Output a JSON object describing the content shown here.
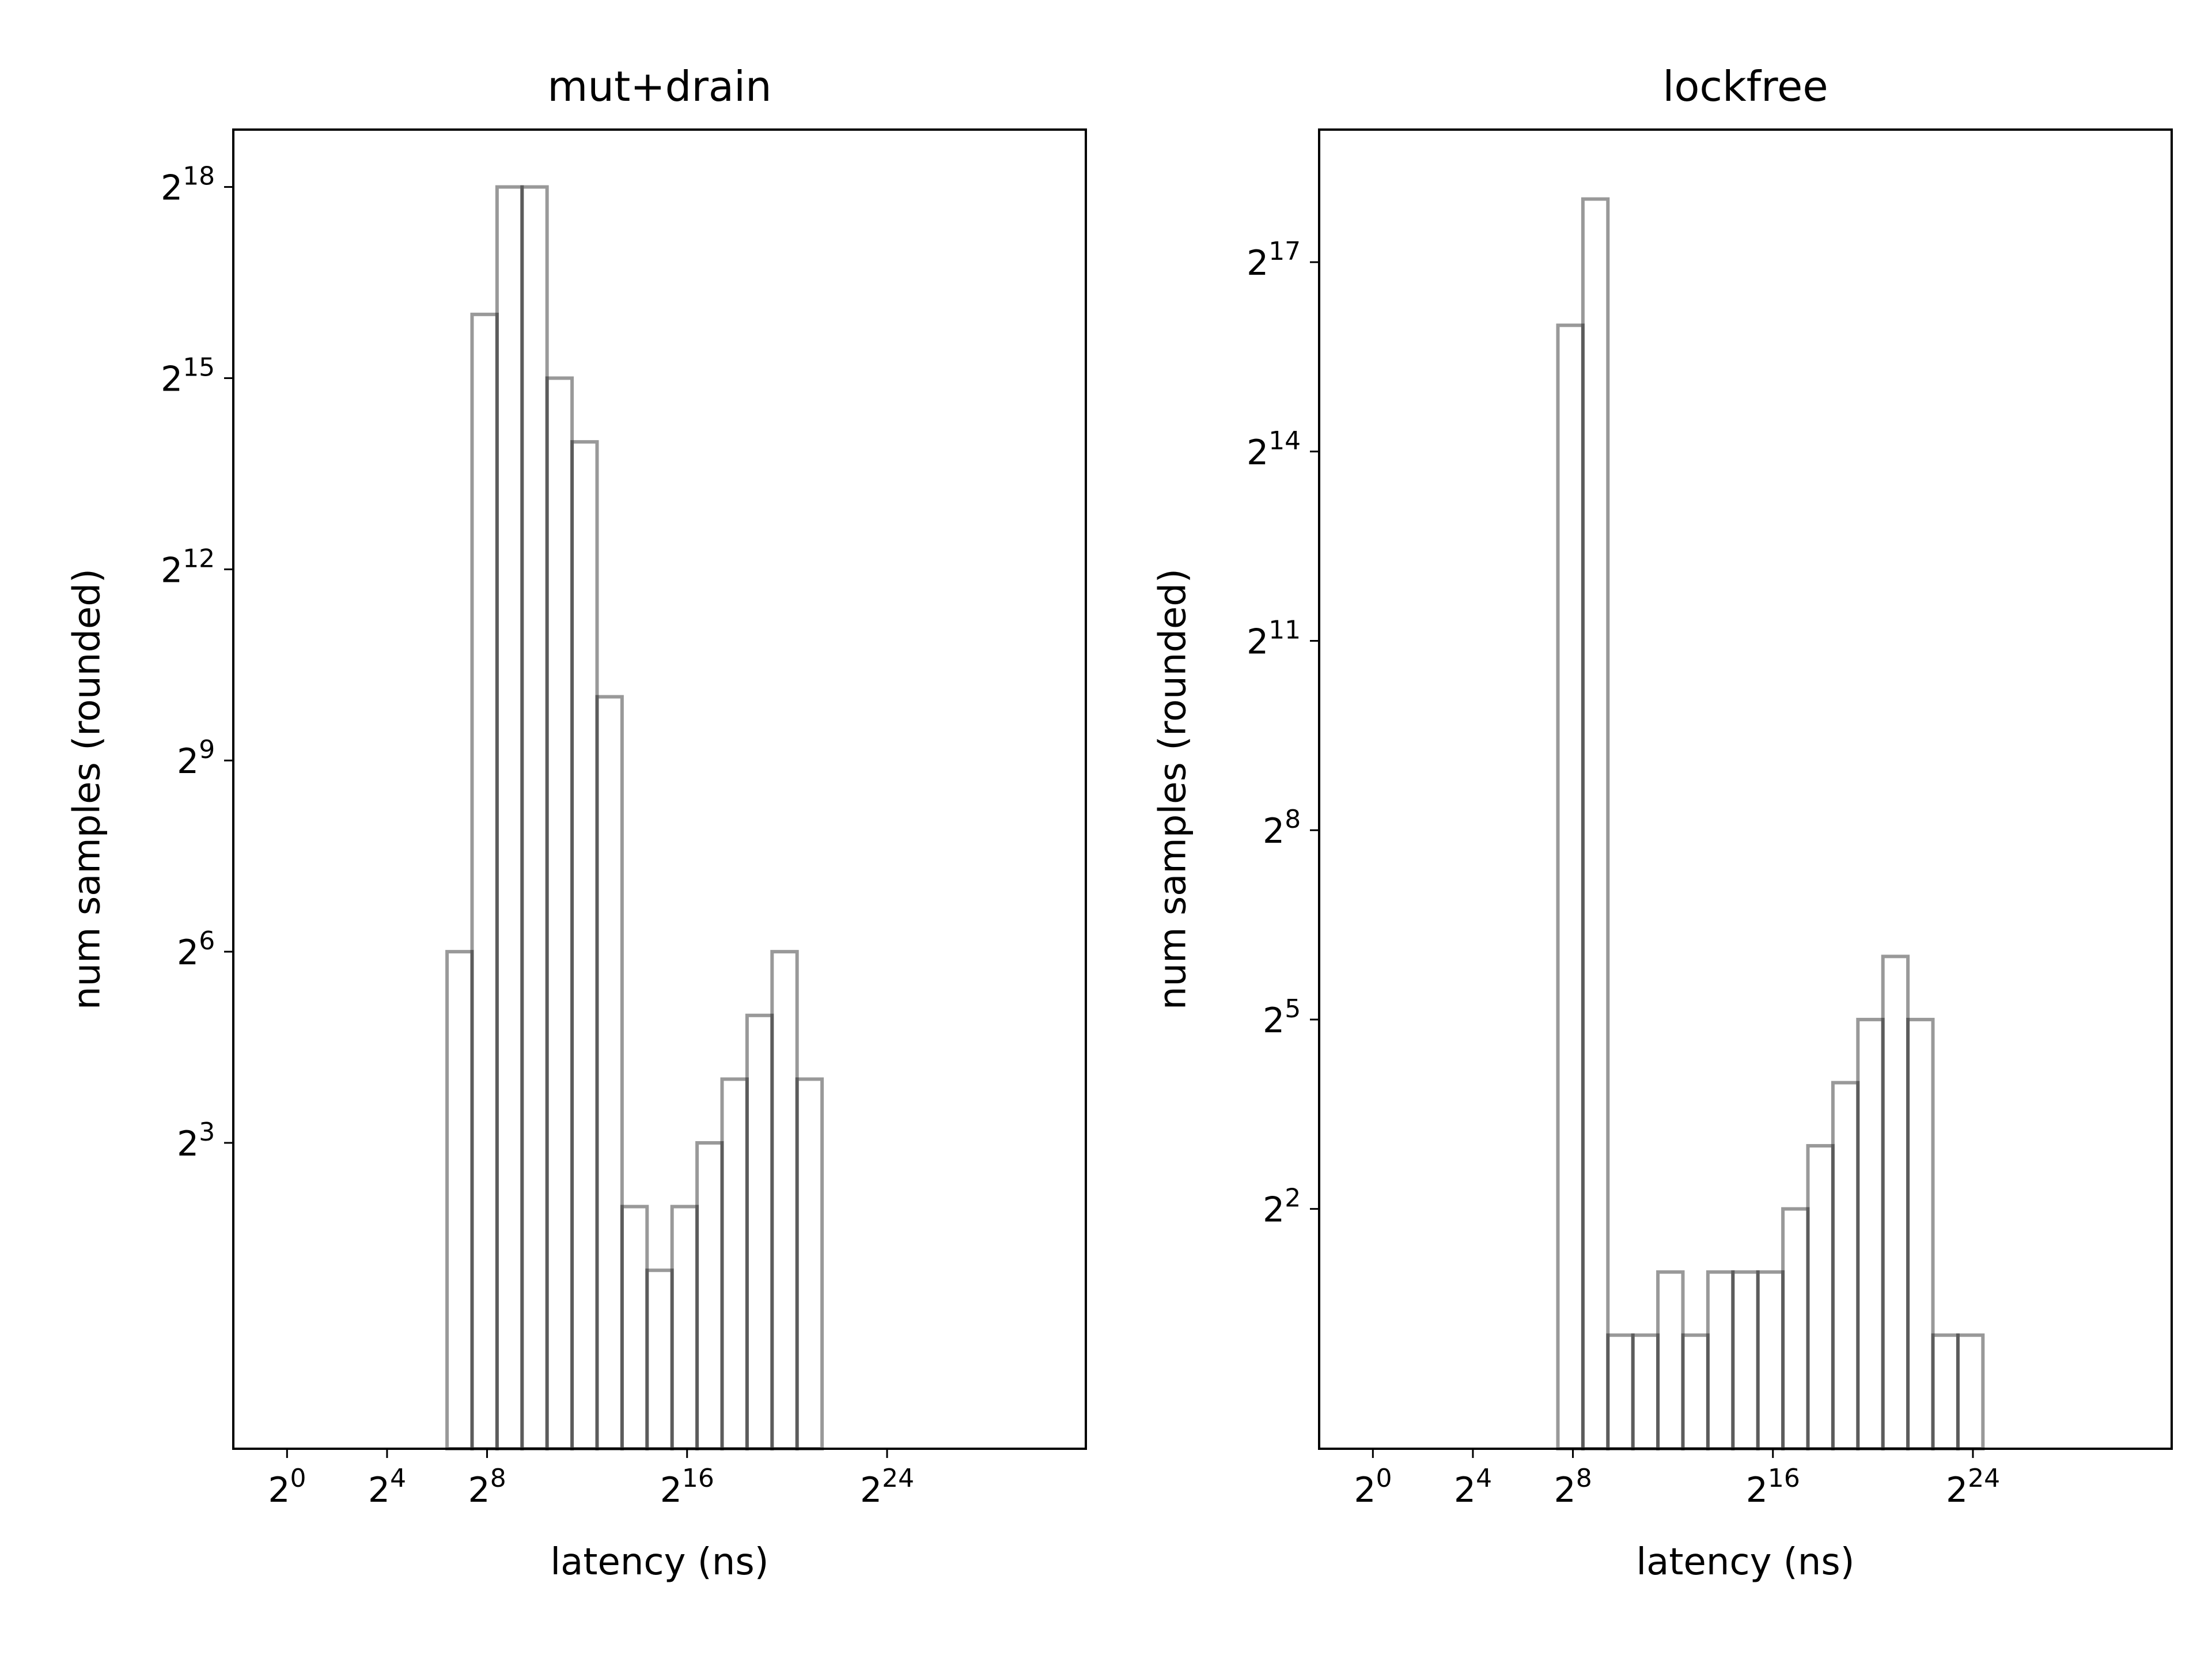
{
  "chart_data": [
    {
      "type": "bar",
      "title": "mut+drain",
      "xlabel": "latency (ns)",
      "ylabel": "num samples (rounded)",
      "x_scale": "log2",
      "y_scale": "log2",
      "xlim_log2": [
        -2.15,
        31.95
      ],
      "ylim_log2": [
        -1.8,
        18.9
      ],
      "x_ticks_log2": [
        0,
        4,
        8,
        16,
        24
      ],
      "y_ticks_log2": [
        3,
        6,
        9,
        12,
        15,
        18
      ],
      "bin_width_log2": 1,
      "bins_log2_left": [
        6.4,
        7.4,
        8.4,
        9.4,
        10.4,
        11.4,
        12.4,
        13.4,
        14.4,
        15.4,
        16.4,
        17.4,
        18.4,
        19.4,
        20.4
      ],
      "values_log2": [
        6,
        16,
        18,
        18,
        15,
        14,
        10,
        2,
        1,
        2,
        3,
        4,
        5,
        6,
        4
      ],
      "grid": false,
      "bar_fill": "none",
      "bar_edge_color": "#000000",
      "bar_edge_alpha": 0.4
    },
    {
      "type": "bar",
      "title": "lockfree",
      "xlabel": "latency (ns)",
      "ylabel": "num samples (rounded)",
      "x_scale": "log2",
      "y_scale": "log2",
      "xlim_log2": [
        -2.15,
        31.95
      ],
      "ylim_log2": [
        -1.8,
        19.1
      ],
      "x_ticks_log2": [
        0,
        4,
        8,
        16,
        24
      ],
      "y_ticks_log2": [
        2,
        5,
        8,
        11,
        14,
        17
      ],
      "bin_width_log2": 1,
      "bins_log2_left": [
        7.4,
        8.4,
        9.4,
        10.4,
        11.4,
        12.4,
        13.4,
        14.4,
        15.4,
        16.4,
        17.4,
        18.4,
        19.4,
        20.4,
        21.4,
        22.4,
        23.4
      ],
      "values_log2": [
        16,
        18,
        0,
        0,
        1,
        0,
        1,
        1,
        1,
        2,
        3,
        4,
        5,
        6,
        5,
        0,
        0
      ],
      "grid": false,
      "bar_fill": "none",
      "bar_edge_color": "#000000",
      "bar_edge_alpha": 0.4
    }
  ]
}
